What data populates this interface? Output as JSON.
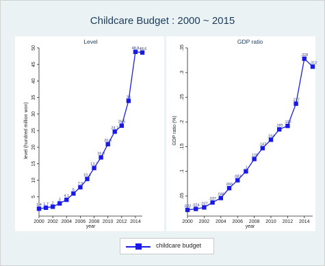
{
  "title": "Childcare Budget : 2000 ~ 2015",
  "legend": {
    "label": "childcare budget"
  },
  "colors": {
    "series": "#1a1ae6",
    "label": "#2c3a87",
    "panel_bg": "#ffffff",
    "outer_bg": "#eaf2f3",
    "title": "#1a3b5c"
  },
  "chart_data": [
    {
      "type": "line",
      "title": "Level",
      "xlabel": "year",
      "ylabel": "level (hundred million won)",
      "x": [
        2000,
        2001,
        2002,
        2003,
        2004,
        2005,
        2006,
        2007,
        2008,
        2009,
        2010,
        2011,
        2012,
        2013,
        2014,
        2015
      ],
      "series": [
        {
          "name": "childcare budget",
          "values": [
            1.4,
            1.7,
            2,
            3,
            4.1,
            6,
            7.9,
            10.4,
            13.7,
            16.9,
            20.9,
            24.7,
            26.5,
            34,
            48.8,
            48.6
          ],
          "labels": [
            "1.4",
            "1.7",
            "2",
            "3",
            "4.1",
            "6",
            "7.9",
            "10.4",
            "13.7",
            "16.9",
            "20.9",
            "24.7",
            "26.5",
            "34",
            "48.8",
            "48.6"
          ]
        }
      ],
      "xticks": [
        2000,
        2002,
        2004,
        2006,
        2008,
        2010,
        2012,
        2014
      ],
      "yticks": [
        5,
        10,
        15,
        20,
        25,
        30,
        35,
        40,
        45,
        50
      ],
      "xlim": [
        2000,
        2015
      ],
      "ylim": [
        0,
        50
      ]
    },
    {
      "type": "line",
      "title": "GDP ratio",
      "xlabel": "year",
      "ylabel": "GDP ratio (%)",
      "x": [
        2000,
        2001,
        2002,
        2003,
        2004,
        2005,
        2006,
        2007,
        2008,
        2009,
        2010,
        2011,
        2012,
        2013,
        2014,
        2015
      ],
      "series": [
        {
          "name": "childcare budget",
          "values": [
            0.022,
            0.024,
            0.027,
            0.037,
            0.046,
            0.066,
            0.082,
            0.1,
            0.125,
            0.147,
            0.164,
            0.185,
            0.192,
            0.237,
            0.328,
            0.312
          ],
          "labels": [
            ".022",
            ".024",
            ".027",
            ".037",
            ".046",
            ".066",
            ".082",
            ".1",
            ".125",
            ".147",
            ".164",
            ".185",
            ".192",
            ".237",
            ".328",
            ".312"
          ]
        }
      ],
      "xticks": [
        2000,
        2002,
        2004,
        2006,
        2008,
        2010,
        2012,
        2014
      ],
      "yticks": [
        0.05,
        0.1,
        0.15,
        0.2,
        0.25,
        0.3,
        0.35
      ],
      "yticklabels": [
        ".05",
        ".1",
        ".15",
        ".2",
        ".25",
        ".3",
        ".35"
      ],
      "xlim": [
        2000,
        2015
      ],
      "ylim": [
        0.015,
        0.35
      ]
    }
  ]
}
